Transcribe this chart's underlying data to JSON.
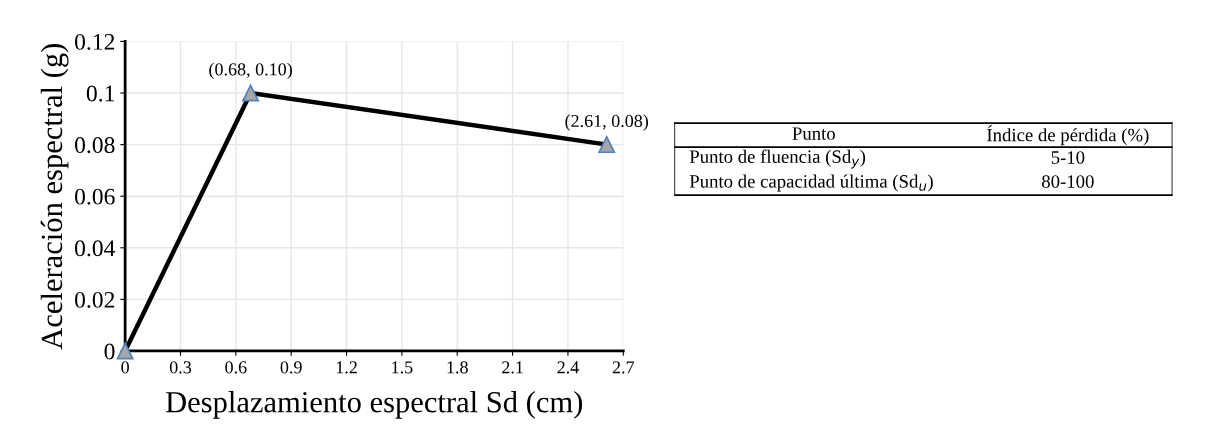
{
  "chart_data": [
    {
      "type": "line",
      "xlabel": "Desplazamiento espectral Sd (cm)",
      "ylabel": "Aceleración espectral (g)",
      "x": [
        0,
        0.68,
        2.61
      ],
      "series": [
        {
          "color": "#000000",
          "values": [
            0,
            0.1,
            0.08
          ]
        }
      ],
      "xlim": [
        0,
        2.7
      ],
      "xticks": [
        0,
        0.3,
        0.6,
        0.9,
        1.2,
        1.5,
        1.8,
        2.1,
        2.4,
        2.7
      ],
      "ylim": [
        0,
        0.12
      ],
      "yticks": [
        0,
        0.02,
        0.04,
        0.06,
        0.08,
        0.1,
        0.12
      ],
      "grid": true,
      "marker": "triangle",
      "line_style": "solid",
      "annotations": [
        {
          "text": "(0.68, 0.10)",
          "x": 0.68,
          "y": 0.1
        },
        {
          "text": "(2.61, 0.08)",
          "x": 2.61,
          "y": 0.08
        }
      ]
    },
    {
      "type": "other",
      "annotations": [
        "Punto",
        "Índice de pérdida (%)",
        "Punto de fluencia (Sd$_{y}$)",
        "5-10",
        "Punto de capacidad última (Sd$_{u}$)",
        "80-100"
      ]
    }
  ]
}
